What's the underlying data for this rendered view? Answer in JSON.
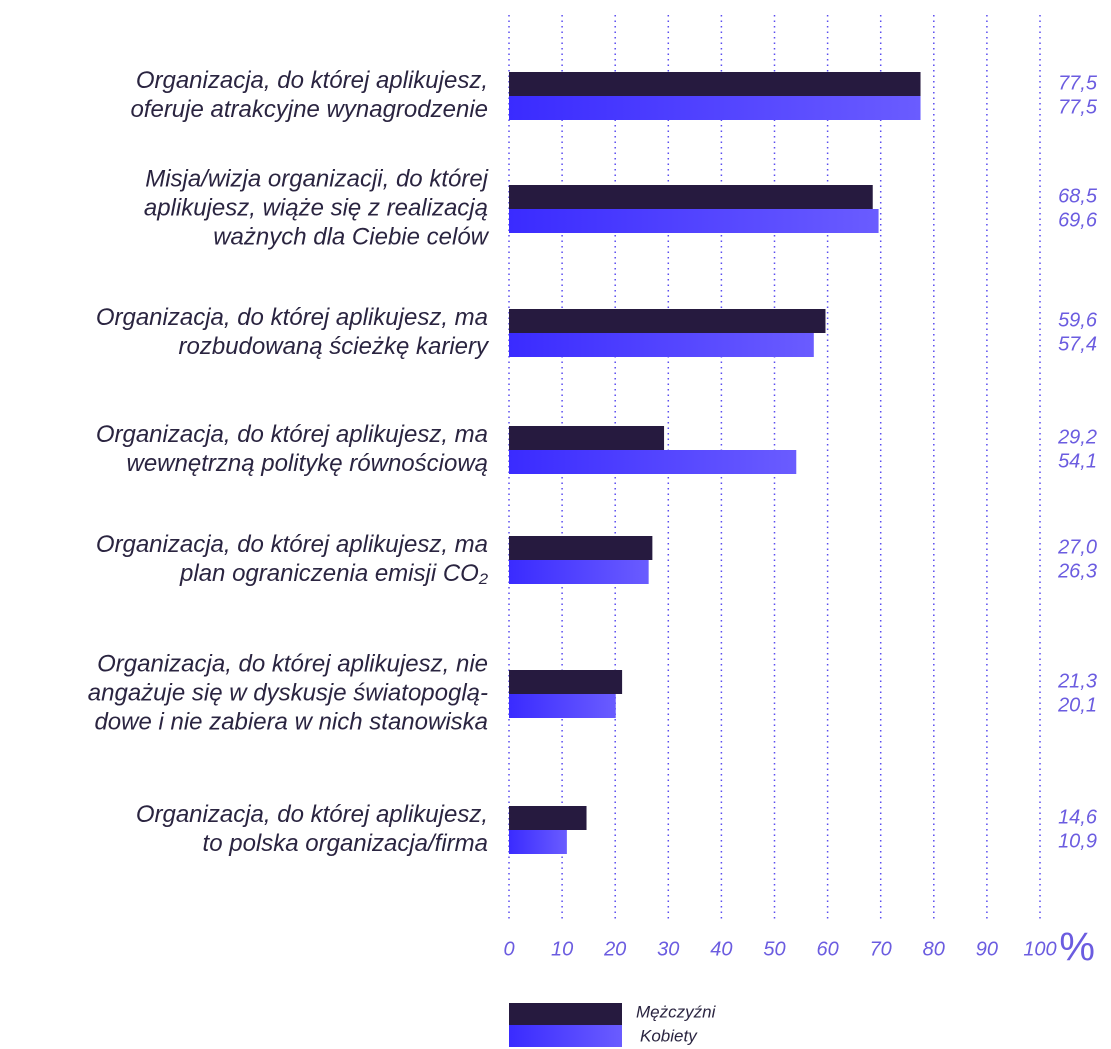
{
  "chart_data": {
    "type": "bar",
    "orientation": "horizontal",
    "categories": [
      [
        "Organizacja, do której aplikujesz,",
        "oferuje atrakcyjne wynagrodzenie"
      ],
      [
        "Misja/wizja organizacji, do której",
        "aplikujesz, wiąże się z realizacją",
        "ważnych dla Ciebie celów"
      ],
      [
        "Organizacja, do której aplikujesz, ma",
        "rozbudowaną ścieżkę kariery"
      ],
      [
        "Organizacja, do której aplikujesz, ma",
        "wewnętrzną politykę równościową"
      ],
      [
        "Organizacja, do której aplikujesz, ma",
        "plan ograniczenia emisji CO₂"
      ],
      [
        "Organizacja, do której aplikujesz, nie",
        "angażuje się w dyskusje światopoglą-",
        "dowe i nie zabiera w nich stanowiska"
      ],
      [
        "Organizacja, do której aplikujesz,",
        "to polska organizacja/firma"
      ]
    ],
    "series": [
      {
        "name": "Mężczyźni",
        "color": "#261a3f",
        "values": [
          77.5,
          68.5,
          59.6,
          29.2,
          27.0,
          21.3,
          14.6
        ],
        "value_labels": [
          "77,5",
          "68,5",
          "59,6",
          "29,2",
          "27,0",
          "21,3",
          "14,6"
        ]
      },
      {
        "name": "Kobiety",
        "color": "#4433ff",
        "values": [
          77.5,
          69.6,
          57.4,
          54.1,
          26.3,
          20.1,
          10.9
        ],
        "value_labels": [
          "77,5",
          "69,6",
          "57,4",
          "54,1",
          "26,3",
          "20,1",
          "10,9"
        ]
      }
    ],
    "xlim": [
      0,
      100
    ],
    "xticks": [
      0,
      10,
      20,
      30,
      40,
      50,
      60,
      70,
      80,
      90,
      100
    ],
    "x_unit": "%",
    "grid": true,
    "legend": "bottom"
  }
}
